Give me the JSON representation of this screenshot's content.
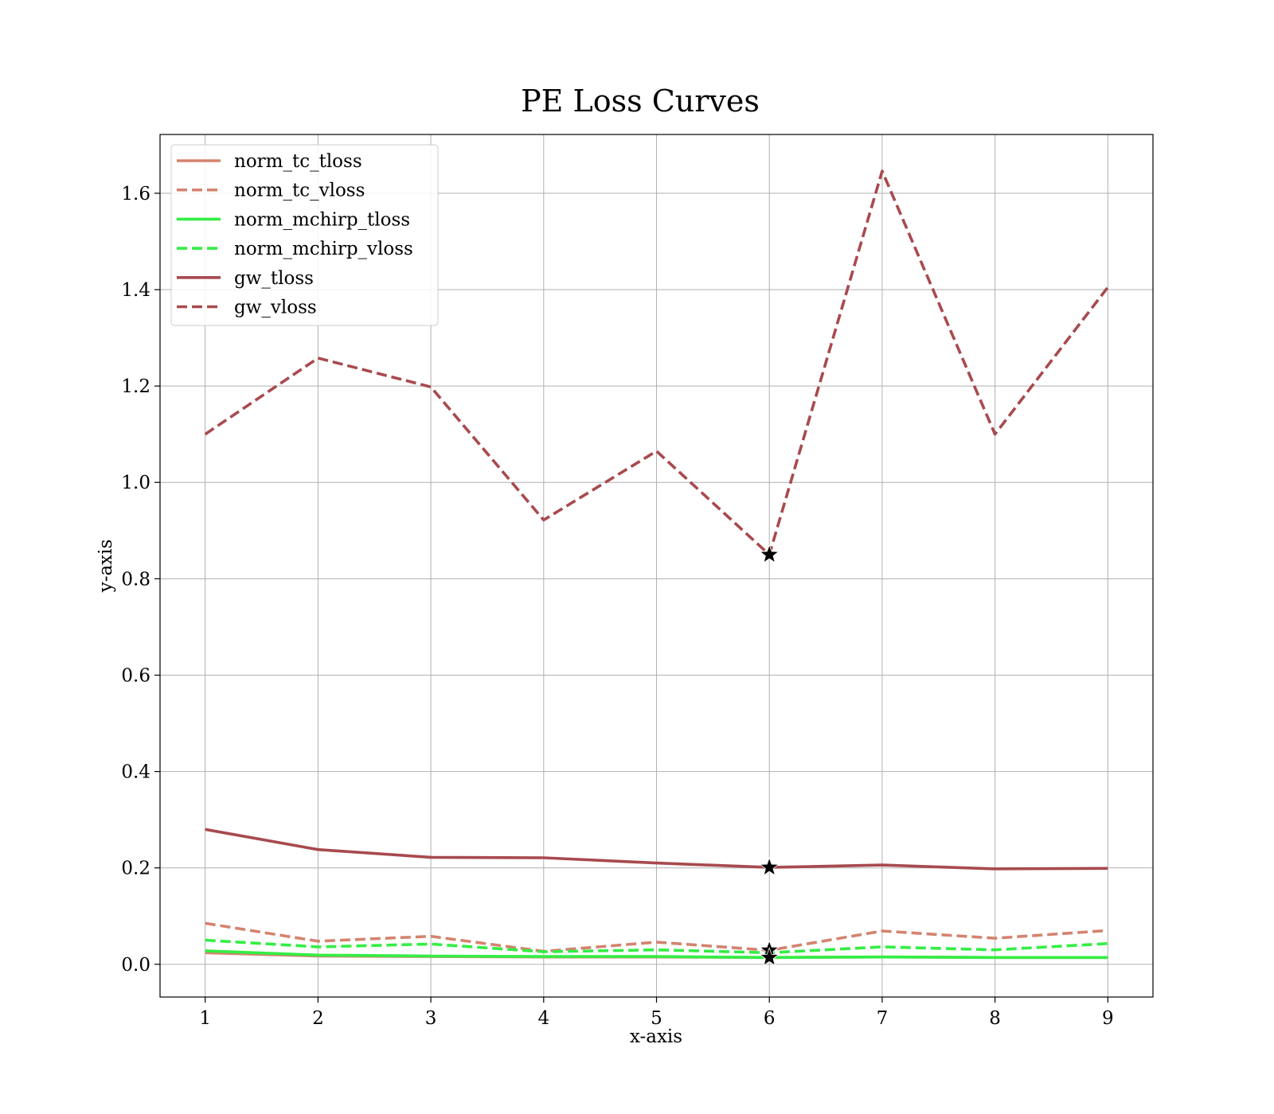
{
  "chart_data": {
    "type": "line",
    "title": "PE Loss Curves",
    "xlabel": "x-axis",
    "ylabel": "y-axis",
    "xlim": [
      0.6,
      9.4
    ],
    "ylim": [
      -0.068,
      1.722
    ],
    "xticks": [
      1,
      2,
      3,
      4,
      5,
      6,
      7,
      8,
      9
    ],
    "yticks": [
      0.0,
      0.2,
      0.4,
      0.6,
      0.8,
      1.0,
      1.2,
      1.4,
      1.6
    ],
    "grid": true,
    "legend_position": "top-left",
    "x": [
      1,
      2,
      3,
      4,
      5,
      6,
      7,
      8,
      9
    ],
    "series": [
      {
        "name": "norm_tc_tloss",
        "color": "#d4836f",
        "style": "solid",
        "values": [
          0.024,
          0.017,
          0.016,
          0.015,
          0.015,
          0.014,
          0.015,
          0.014,
          0.014
        ]
      },
      {
        "name": "norm_tc_vloss",
        "color": "#d4836f",
        "style": "dashed",
        "values": [
          0.085,
          0.048,
          0.058,
          0.027,
          0.046,
          0.029,
          0.069,
          0.054,
          0.07
        ]
      },
      {
        "name": "norm_mchirp_tloss",
        "color": "#33ee44",
        "style": "solid",
        "values": [
          0.028,
          0.019,
          0.017,
          0.016,
          0.016,
          0.014,
          0.015,
          0.014,
          0.014
        ]
      },
      {
        "name": "norm_mchirp_vloss",
        "color": "#33ee44",
        "style": "dashed",
        "values": [
          0.05,
          0.036,
          0.042,
          0.026,
          0.03,
          0.024,
          0.036,
          0.03,
          0.043
        ]
      },
      {
        "name": "gw_tloss",
        "color": "#a84a4e",
        "style": "solid",
        "values": [
          0.28,
          0.238,
          0.222,
          0.221,
          0.21,
          0.201,
          0.206,
          0.198,
          0.199
        ]
      },
      {
        "name": "gw_vloss",
        "color": "#a84a4e",
        "style": "dashed",
        "values": [
          1.1,
          1.258,
          1.198,
          0.922,
          1.065,
          0.85,
          1.646,
          1.1,
          1.405
        ]
      }
    ],
    "markers": [
      {
        "x": 6,
        "y": 0.85,
        "shape": "star"
      },
      {
        "x": 6,
        "y": 0.201,
        "shape": "star"
      },
      {
        "x": 6,
        "y": 0.029,
        "shape": "star"
      },
      {
        "x": 6,
        "y": 0.014,
        "shape": "star"
      }
    ]
  }
}
